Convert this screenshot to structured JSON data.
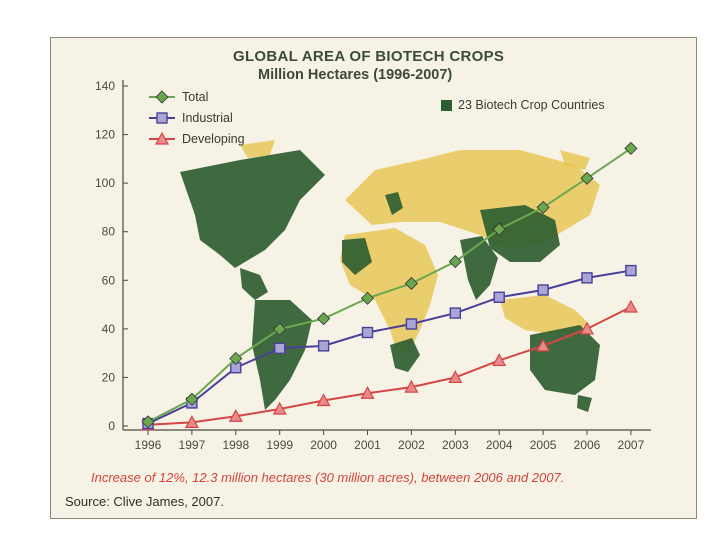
{
  "chart_data": {
    "type": "line",
    "title": "GLOBAL AREA OF BIOTECH CROPS",
    "subtitle": "Million Hectares (1996-2007)",
    "x": [
      "1996",
      "1997",
      "1998",
      "1999",
      "2000",
      "2001",
      "2002",
      "2003",
      "2004",
      "2005",
      "2006",
      "2007"
    ],
    "ylim": [
      0,
      140
    ],
    "yticks": [
      0,
      20,
      40,
      60,
      80,
      100,
      120,
      140
    ],
    "grid": false,
    "legend_position": "top-left",
    "series": [
      {
        "name": "Total",
        "color": "#6aa84f",
        "marker": "diamond",
        "values": [
          1.7,
          11,
          27.8,
          39.9,
          44.2,
          52.6,
          58.7,
          67.7,
          81.0,
          90.0,
          102.0,
          114.3
        ]
      },
      {
        "name": "Industrial",
        "color": "#4a3f9a",
        "marker": "square",
        "values": [
          1.0,
          9.5,
          24.0,
          32.0,
          33.0,
          38.5,
          42.0,
          46.5,
          53.0,
          56.0,
          61.0,
          64.0
        ]
      },
      {
        "name": "Developing",
        "color": "#d64545",
        "marker": "triangle",
        "values": [
          0.5,
          1.5,
          4.0,
          7.0,
          10.5,
          13.5,
          16.0,
          20.0,
          27.0,
          33.0,
          40.0,
          49.0
        ]
      }
    ],
    "background_note": "23 Biotech Crop Countries",
    "annotation": "Increase of 12%, 12.3 million hectares (30 million acres), between 2006 and 2007.",
    "source": "Source: Clive James, 2007."
  },
  "colors": {
    "map_land": "#e7c24a",
    "map_biotech": "#2f5e32",
    "card_bg": "#f6f3e6",
    "annotation": "#d2433a"
  }
}
